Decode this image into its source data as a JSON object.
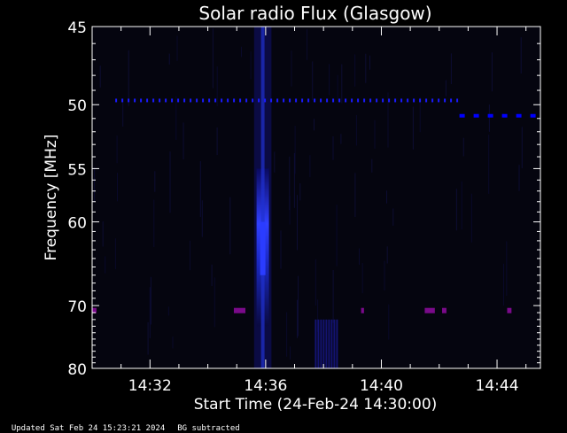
{
  "chart_data": {
    "type": "heatmap",
    "title": "Solar radio Flux (Glasgow)",
    "xlabel": "Start Time (24-Feb-24 14:30:00)",
    "ylabel": "Frequency [MHz]",
    "xlim_minutes_after_1430": [
      0.0,
      15.5
    ],
    "ylim_mhz": [
      45,
      80
    ],
    "y_scale": "reciprocal (top 45 MHz, bottom 80 MHz)",
    "x_ticks": [
      {
        "label": "14:32",
        "minute": 2
      },
      {
        "label": "14:36",
        "minute": 6
      },
      {
        "label": "14:40",
        "minute": 10
      },
      {
        "label": "14:44",
        "minute": 14
      }
    ],
    "y_ticks": [
      "45",
      "50",
      "55",
      "60",
      "70",
      "80"
    ],
    "y_tick_values": [
      45,
      50,
      55,
      60,
      70,
      80
    ],
    "features": [
      {
        "kind": "burst",
        "start_minute": 5.6,
        "end_minute": 6.2,
        "peak_minute": 5.9,
        "freq_range_mhz": [
          45,
          80
        ],
        "color": "#2a3cff"
      },
      {
        "kind": "interference_line",
        "freq_mhz": 49.7,
        "start_minute": 0.8,
        "end_minute": 12.7,
        "color": "#1a1aff"
      },
      {
        "kind": "interference_line",
        "freq_mhz": 50.8,
        "start_minute": 12.7,
        "end_minute": 15.3,
        "color": "#0000ff"
      },
      {
        "kind": "interference_line",
        "freq_mhz": 70.7,
        "start_minute": 0.0,
        "end_minute": 15.3,
        "color": "#7a0a8a",
        "segments_minutes": [
          [
            0.0,
            0.15
          ],
          [
            4.9,
            5.3
          ],
          [
            9.3,
            9.4
          ],
          [
            11.5,
            11.85
          ],
          [
            12.1,
            12.25
          ],
          [
            14.35,
            14.5
          ]
        ]
      },
      {
        "kind": "streak",
        "freq_range_mhz": [
          72,
          80
        ],
        "start_minute": 7.7,
        "end_minute": 8.5,
        "color": "#1a1a9a"
      }
    ],
    "colors": {
      "background": "#000000",
      "axes": "#ffffff",
      "burst": "#2a3cff",
      "rfi": "#7a0a8a"
    }
  },
  "footer": {
    "updated": "Updated Sat Feb 24 15:23:21 2024",
    "bg_note": "BG subtracted"
  }
}
